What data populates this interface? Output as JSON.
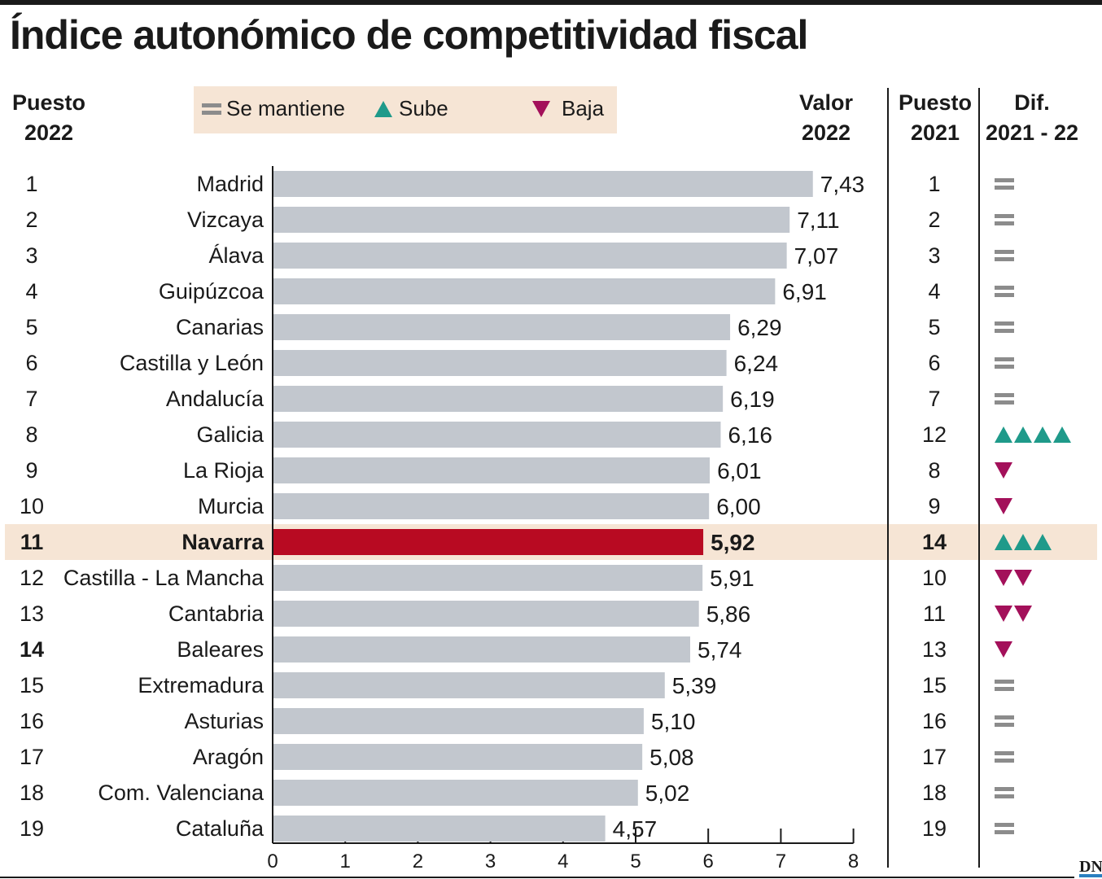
{
  "title": "Índice autonómico de competitividad fiscal",
  "headers": {
    "rank2022": [
      "Puesto",
      "2022"
    ],
    "value2022": [
      "Valor",
      "2022"
    ],
    "rank2021": [
      "Puesto",
      "2021"
    ],
    "dif": [
      "Dif.",
      "2021 - 22"
    ]
  },
  "legend": {
    "same": "Se mantiene",
    "up": "Sube",
    "down": "Baja"
  },
  "colors": {
    "bar": "#c2c7ce",
    "highlight_bar": "#b80a22",
    "highlight_row": "#f6e5d5",
    "up": "#1f9a8a",
    "down": "#a3105a",
    "same": "#8c8c8c"
  },
  "rows": [
    {
      "rank2022": "1",
      "region": "Madrid",
      "value": "7,43",
      "rank2021": "1",
      "change": "same",
      "count": 1
    },
    {
      "rank2022": "2",
      "region": "Vizcaya",
      "value": "7,11",
      "rank2021": "2",
      "change": "same",
      "count": 1
    },
    {
      "rank2022": "3",
      "region": "Álava",
      "value": "7,07",
      "rank2021": "3",
      "change": "same",
      "count": 1
    },
    {
      "rank2022": "4",
      "region": "Guipúzcoa",
      "value": "6,91",
      "rank2021": "4",
      "change": "same",
      "count": 1
    },
    {
      "rank2022": "5",
      "region": "Canarias",
      "value": "6,29",
      "rank2021": "5",
      "change": "same",
      "count": 1
    },
    {
      "rank2022": "6",
      "region": "Castilla y León",
      "value": "6,24",
      "rank2021": "6",
      "change": "same",
      "count": 1
    },
    {
      "rank2022": "7",
      "region": "Andalucía",
      "value": "6,19",
      "rank2021": "7",
      "change": "same",
      "count": 1
    },
    {
      "rank2022": "8",
      "region": "Galicia",
      "value": "6,16",
      "rank2021": "12",
      "change": "up",
      "count": 4
    },
    {
      "rank2022": "9",
      "region": "La Rioja",
      "value": "6,01",
      "rank2021": "8",
      "change": "down",
      "count": 1
    },
    {
      "rank2022": "10",
      "region": "Murcia",
      "value": "6,00",
      "rank2021": "9",
      "change": "down",
      "count": 1
    },
    {
      "rank2022": "11",
      "region": "Navarra",
      "value": "5,92",
      "rank2021": "14",
      "change": "up",
      "count": 3,
      "highlight": true
    },
    {
      "rank2022": "12",
      "region": "Castilla - La Mancha",
      "value": "5,91",
      "rank2021": "10",
      "change": "down",
      "count": 2
    },
    {
      "rank2022": "13",
      "region": "Cantabria",
      "value": "5,86",
      "rank2021": "11",
      "change": "down",
      "count": 2
    },
    {
      "rank2022": "14",
      "region": "Baleares",
      "value": "5,74",
      "rank2021": "13",
      "change": "down",
      "count": 1,
      "bold_rank": true
    },
    {
      "rank2022": "15",
      "region": "Extremadura",
      "value": "5,39",
      "rank2021": "15",
      "change": "same",
      "count": 1
    },
    {
      "rank2022": "16",
      "region": "Asturias",
      "value": "5,10",
      "rank2021": "16",
      "change": "same",
      "count": 1
    },
    {
      "rank2022": "17",
      "region": "Aragón",
      "value": "5,08",
      "rank2021": "17",
      "change": "same",
      "count": 1
    },
    {
      "rank2022": "18",
      "region": "Com. Valenciana",
      "value": "5,02",
      "rank2021": "18",
      "change": "same",
      "count": 1
    },
    {
      "rank2022": "19",
      "region": "Cataluña",
      "value": "4,57",
      "rank2021": "19",
      "change": "same",
      "count": 1
    }
  ],
  "logo": "DN",
  "chart_data": {
    "type": "bar",
    "orientation": "horizontal",
    "title": "Índice autonómico de competitividad fiscal",
    "categories": [
      "Madrid",
      "Vizcaya",
      "Álava",
      "Guipúzcoa",
      "Canarias",
      "Castilla y León",
      "Andalucía",
      "Galicia",
      "La Rioja",
      "Murcia",
      "Navarra",
      "Castilla - La Mancha",
      "Cantabria",
      "Baleares",
      "Extremadura",
      "Asturias",
      "Aragón",
      "Com. Valenciana",
      "Cataluña"
    ],
    "values": [
      7.43,
      7.11,
      7.07,
      6.91,
      6.29,
      6.24,
      6.19,
      6.16,
      6.01,
      6.0,
      5.92,
      5.91,
      5.86,
      5.74,
      5.39,
      5.1,
      5.08,
      5.02,
      4.57
    ],
    "xlim": [
      0,
      8
    ],
    "xticks": [
      "0",
      "1",
      "2",
      "3",
      "4",
      "5",
      "6",
      "7",
      "8"
    ],
    "highlight": "Navarra",
    "grid": false
  }
}
